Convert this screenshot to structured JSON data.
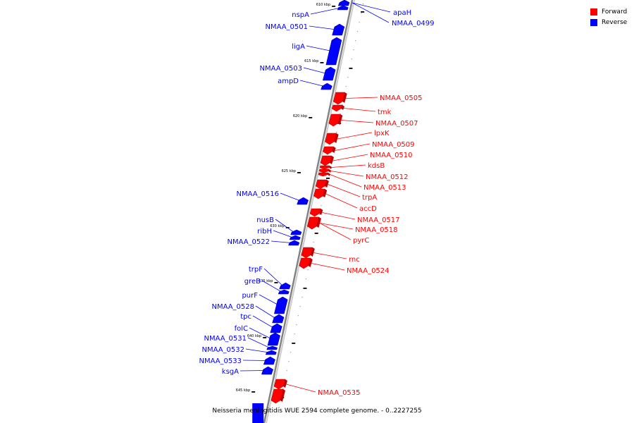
{
  "legend": {
    "forward_label": "Forward",
    "reverse_label": "Reverse",
    "forward_color": "#ff0000",
    "reverse_color": "#0000ff"
  },
  "caption": "Neisseria meningitidis WUE 2594 complete genome. - 0..2227255",
  "ticks": [
    "610 kbp",
    "615 kbp",
    "620 kbp",
    "625 kbp",
    "630 kbp",
    "635 kbp",
    "640 kbp",
    "645 kbp"
  ],
  "reverse_genes": [
    "apaH",
    "NMAA_0499",
    "nspA",
    "NMAA_0501",
    "ligA",
    "NMAA_0503",
    "ampD",
    "NMAA_0516",
    "nusB",
    "ribH",
    "NMAA_0522",
    "trpF",
    "greB",
    "purF",
    "NMAA_0528",
    "tpc",
    "folC",
    "NMAA_0531",
    "NMAA_0532",
    "NMAA_0533",
    "ksgA"
  ],
  "forward_genes": [
    "NMAA_0505",
    "tmk",
    "NMAA_0507",
    "lpxK",
    "NMAA_0509",
    "NMAA_0510",
    "kdsB",
    "NMAA_0512",
    "NMAA_0513",
    "trpA",
    "accD",
    "NMAA_0517",
    "NMAA_0518",
    "pyrC",
    "rnc",
    "NMAA_0524",
    "NMAA_0535"
  ]
}
